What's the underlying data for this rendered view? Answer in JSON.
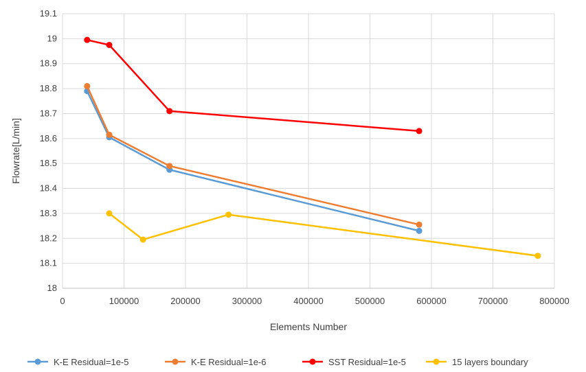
{
  "chart_data": {
    "type": "line",
    "title": "",
    "xlabel": "Elements Number",
    "ylabel": "Flowrate[L/min]",
    "xlim": [
      0,
      800000
    ],
    "ylim": [
      18,
      19.1
    ],
    "xticks": [
      0,
      100000,
      200000,
      300000,
      400000,
      500000,
      600000,
      700000,
      800000
    ],
    "yticks": [
      18,
      18.1,
      18.2,
      18.3,
      18.4,
      18.5,
      18.6,
      18.7,
      18.8,
      18.9,
      19,
      19.1
    ],
    "xtick_labels": [
      "0",
      "100000",
      "200000",
      "300000",
      "400000",
      "500000",
      "600000",
      "700000",
      "800000"
    ],
    "ytick_labels": [
      "18",
      "18.1",
      "18.2",
      "18.3",
      "18.4",
      "18.5",
      "18.6",
      "18.7",
      "18.8",
      "18.9",
      "19",
      "19.1"
    ],
    "grid": true,
    "legend_position": "bottom",
    "series": [
      {
        "name": "K-E Residual=1e-5",
        "color": "#5b9bd5",
        "x": [
          40000,
          76000,
          174000,
          580000
        ],
        "y": [
          18.79,
          18.605,
          18.475,
          18.23
        ]
      },
      {
        "name": "K-E Residual=1e-6",
        "color": "#ed7d31",
        "x": [
          40000,
          76000,
          174000,
          580000
        ],
        "y": [
          18.81,
          18.615,
          18.49,
          18.255
        ]
      },
      {
        "name": "SST Residual=1e-5",
        "color": "#ff0000",
        "x": [
          40000,
          76000,
          174000,
          580000
        ],
        "y": [
          18.995,
          18.975,
          18.71,
          18.63
        ]
      },
      {
        "name": "15 layers boundary",
        "color": "#ffc000",
        "x": [
          76000,
          131000,
          270000,
          773000
        ],
        "y": [
          18.3,
          18.195,
          18.295,
          18.13
        ]
      }
    ]
  }
}
